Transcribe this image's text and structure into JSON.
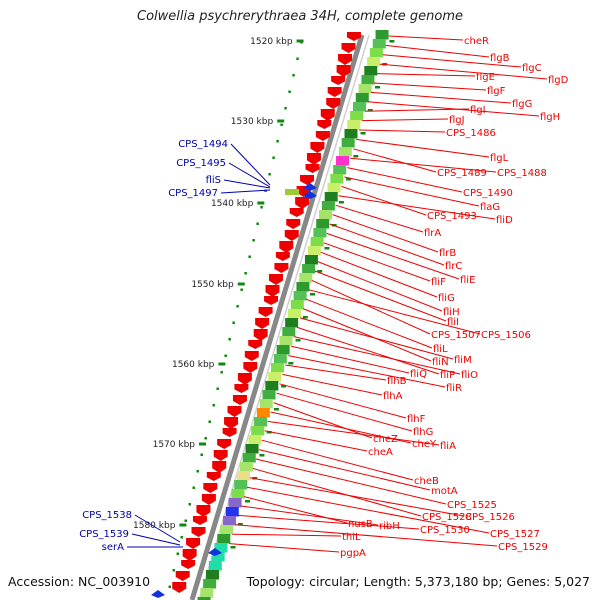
{
  "title": "Colwellia psychrerythraea 34H, complete genome",
  "footer": {
    "accession": "Accession: NC_003910",
    "topology": "Topology: circular; Length: 5,373,180 bp; Genes: 5,027"
  },
  "colors": {
    "forward_genes": "#ee0000",
    "left_labels": "#0000aa",
    "ruler_ticks": "#118811",
    "backbone": "#888888"
  },
  "scale_labels": [
    "1520 kbp",
    "1530 kbp",
    "1540 kbp",
    "1550 kbp",
    "1560 kbp",
    "1570 kbp",
    "1580 kbp"
  ],
  "left_gene_labels": [
    "CPS_1494",
    "CPS_1495",
    "fliS",
    "CPS_1497",
    "CPS_1538",
    "CPS_1539",
    "serA"
  ],
  "right_gene_labels": [
    "cheR",
    "flgB",
    "flgC",
    "flgD",
    "flgE",
    "flgF",
    "flgG",
    "flgH",
    "flgI",
    "flgJ",
    "CPS_1486",
    "flgL",
    "CPS_1489",
    "CPS_1488",
    "CPS_1490",
    "flaG",
    "CPS_1493",
    "fliD",
    "flrA",
    "flrB",
    "flrC",
    "fliE",
    "fliF",
    "fliG",
    "fliH",
    "fliI",
    "CPS_1507",
    "CPS_1506",
    "fliL",
    "fliN",
    "fliM",
    "fliP",
    "fliO",
    "fliQ",
    "fliR",
    "flhB",
    "flhA",
    "flhF",
    "flhG",
    "cheZ",
    "cheY",
    "fliA",
    "cheA",
    "cheB",
    "motA",
    "CPS_1525",
    "CPS_1528",
    "CPS_1526",
    "CPS_1527",
    "nusB",
    "ribH",
    "CPS_1530",
    "CPS_1529",
    "thiL",
    "pgpA"
  ]
}
